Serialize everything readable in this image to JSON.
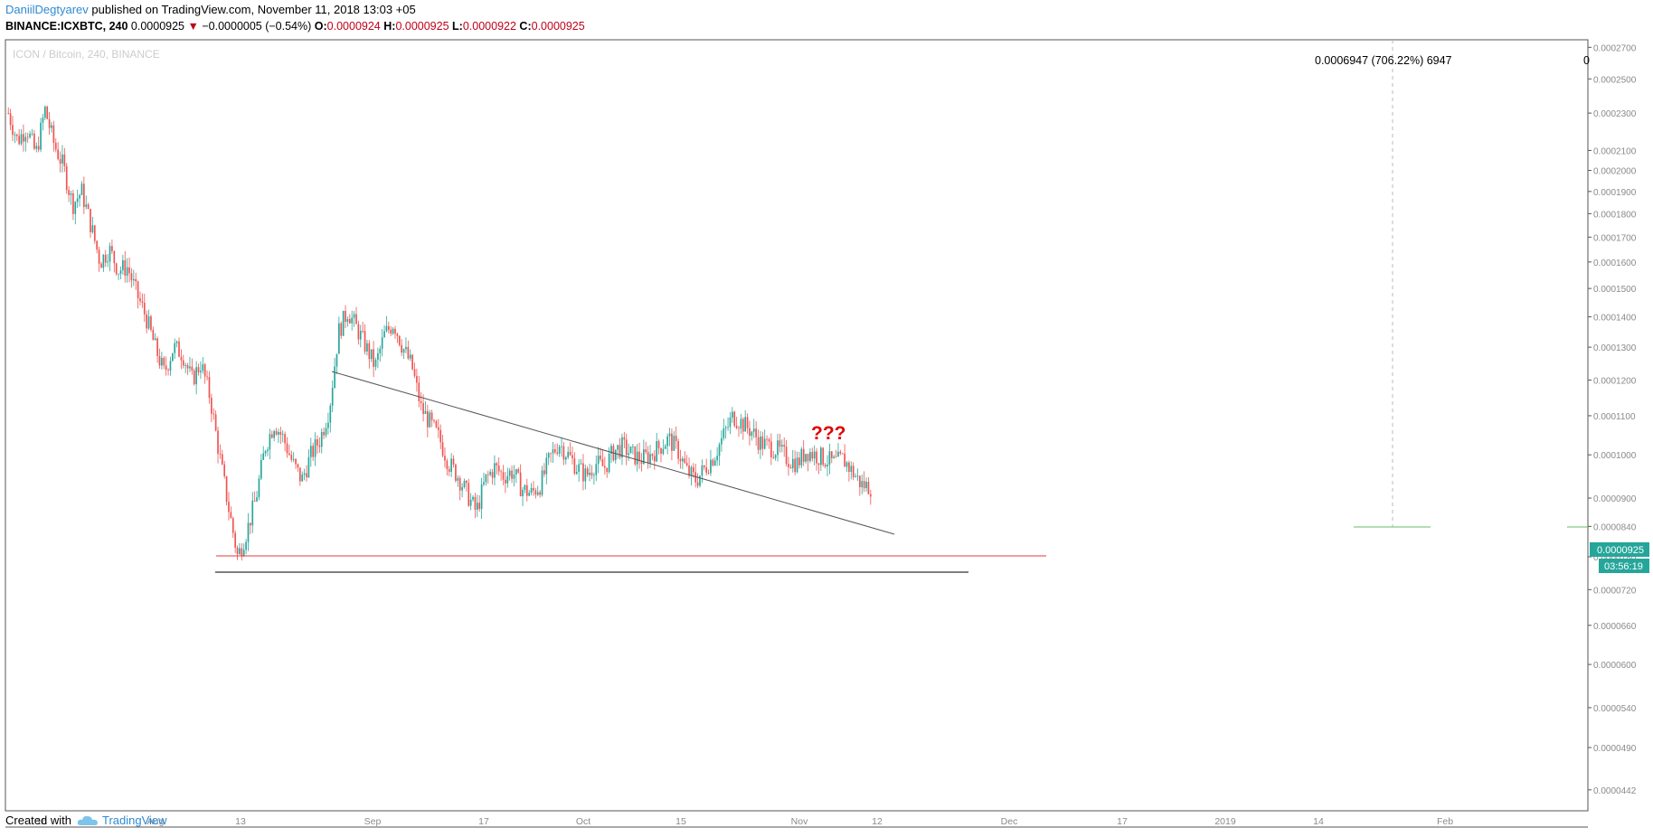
{
  "header": {
    "author": "DaniilDegtyarev",
    "published": " published on TradingView.com, November 11, 2018 13:03 +05",
    "symbol": "BINANCE:ICXBTC, 240",
    "last": "0.0000925",
    "arrow": "▼",
    "change": "−0.0000005 (−0.54%)",
    "o_label": "O:",
    "o": "0.0000924",
    "h_label": "H:",
    "h": "0.0000925",
    "l_label": "L:",
    "l": "0.0000922",
    "c_label": "C:",
    "c": "0.0000925"
  },
  "footer": {
    "created": "Created with",
    "brand": "TradingView"
  },
  "colors": {
    "up": "#26a69a",
    "down": "#ef5350",
    "trendline": "#555555",
    "support_red": "#e53935",
    "support_black": "#333333",
    "annotation": "#e00000",
    "measure": "#66bb6a",
    "axis": "#8a8a8a"
  },
  "chart_data": {
    "type": "candlestick",
    "watermark": "ICON / Bitcoin, 240, BINANCE",
    "y_scale": "log",
    "ylim": [
      4.2e-05,
      0.000275
    ],
    "y_ticks": [
      "0.0002700",
      "0.0002500",
      "0.0002300",
      "0.0002100",
      "0.0002000",
      "0.0001900",
      "0.0001800",
      "0.0001700",
      "0.0001600",
      "0.0001500",
      "0.0001400",
      "0.0001300",
      "0.0001200",
      "0.0001100",
      "0.0001000",
      "0.0000900",
      "0.0000840",
      "0.0000780",
      "0.0000720",
      "0.0000660",
      "0.0000600",
      "0.0000540",
      "0.0000490",
      "0.0000442"
    ],
    "x_ticks": [
      "16",
      "Aug",
      "13",
      "Sep",
      "17",
      "Oct",
      "15",
      "Nov",
      "12",
      "Dec",
      "17",
      "2019",
      "14",
      "Feb"
    ],
    "last_price_label": "0.0000925",
    "countdown_label": "03:56:19",
    "annotation": "???",
    "measure_label": "0.0006947 (706.22%) 6947",
    "measure_label_cut": "0",
    "price_path": [
      [
        0.00023,
        0.000215,
        0.000222,
        0.000208,
        0.000232,
        0.000213,
        0.000202,
        0.000184,
        0.00019,
        0.000175,
        0.00016,
        0.000165,
        0.000157,
        0.000158,
        0.000148,
        0.00014,
        0.00013,
        0.000122,
        0.00013,
        0.000128,
        0.00012,
        0.000125,
        0.000115,
        0.0001,
        8.8e-05,
        7.8e-05,
        8.3e-05,
        9e-05,
        0.000102,
        0.000108,
        0.000104,
        9.8e-05,
        9.4e-05,
        0.0001,
        0.000104,
        0.000112,
        0.000135,
        0.000142,
        0.000136,
        0.00013,
        0.000124,
        0.000134,
        0.000138,
        0.00013,
        0.000124,
        0.000112,
        0.000108,
        0.000104,
        9.8e-05,
        9.5e-05,
        9.1e-05,
        8.7e-05,
        9.4e-05,
        9.7e-05,
        9.5e-05,
        9.6e-05,
        9.2e-05,
        9.1e-05,
        9.3e-05,
        9.9e-05,
        0.000103,
        0.0001,
        9.7e-05,
        9.5e-05,
        9.8e-05,
        9.7e-05,
        0.000101,
        0.000102,
        0.0001,
        9.9e-05,
        0.0001,
        0.000102,
        0.000104,
        0.000101,
        9.6e-05,
        9.4e-05,
        9.7e-05,
        0.0001,
        0.000105,
        0.00011,
        0.000108,
        0.000106,
        0.000103,
        0.000102,
        0.000101,
        9.9e-05,
        9.8e-05,
        0.000101,
        0.0001,
        9.9e-05,
        9.8e-05,
        9.9e-05,
        9.6e-05,
        9.3e-05,
        9.25e-05
      ]
    ]
  }
}
